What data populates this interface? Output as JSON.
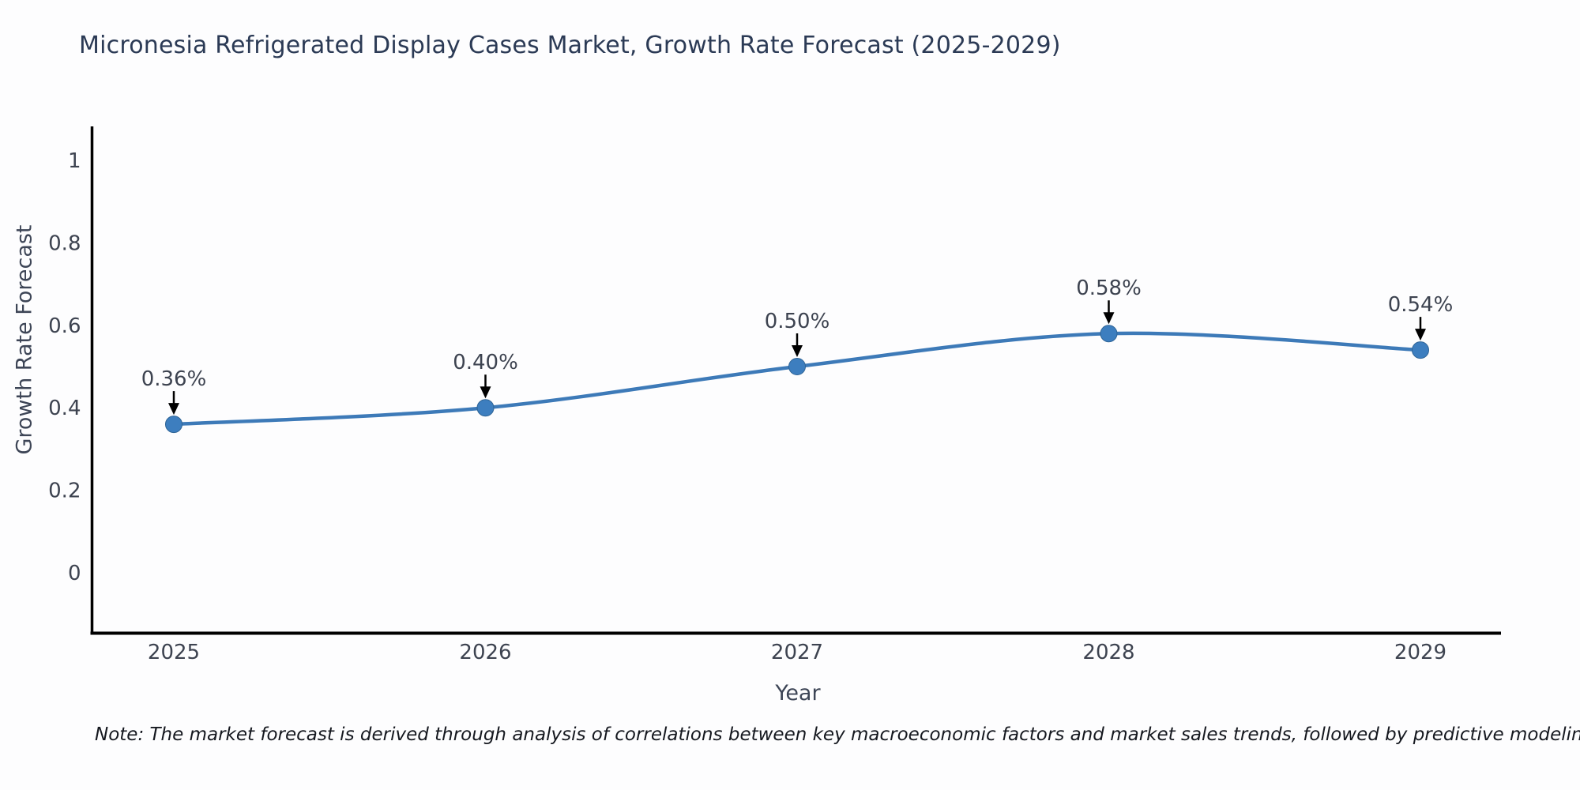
{
  "title": "Micronesia Refrigerated Display Cases Market, Growth Rate Forecast (2025-2029)",
  "note": "Note: The market forecast is derived through analysis of correlations between key macroeconomic factors and market sales trends, followed by predictive modeling to project future sales",
  "chart_data": {
    "type": "line",
    "title": "Micronesia Refrigerated Display Cases Market, Growth Rate Forecast (2025-2029)",
    "xlabel": "Year",
    "ylabel": "Growth Rate Forecast",
    "categories": [
      "2025",
      "2026",
      "2027",
      "2028",
      "2029"
    ],
    "x": [
      2025,
      2026,
      2027,
      2028,
      2029
    ],
    "values": [
      0.36,
      0.4,
      0.5,
      0.58,
      0.54
    ],
    "point_labels": [
      "0.36%",
      "0.40%",
      "0.50%",
      "0.58%",
      "0.54%"
    ],
    "series": [
      {
        "name": "Growth Rate Forecast",
        "values": [
          0.36,
          0.4,
          0.5,
          0.58,
          0.54
        ]
      }
    ],
    "ytick_values": [
      0,
      0.2,
      0.4,
      0.6,
      0.8,
      1
    ],
    "ytick_labels": [
      "0",
      "0.2",
      "0.4",
      "0.6",
      "0.8",
      "1"
    ],
    "xtick_labels": [
      "2025",
      "2026",
      "2027",
      "2028",
      "2029"
    ],
    "ylim": [
      -0.15,
      1.23
    ],
    "grid": false,
    "legend_position": "none",
    "line_shape": "spline",
    "annotations_have_arrows": true,
    "colors": {
      "line": "#3d7ab8",
      "marker": "#3d7ebf",
      "marker_edge": "#2f6496",
      "axis_line": "#000000",
      "arrow": "#000000",
      "title_text": "#2b3a55",
      "tick_text": "#3d4350",
      "annotation_text": "#3d4350",
      "background": "#fdfdfe"
    }
  }
}
